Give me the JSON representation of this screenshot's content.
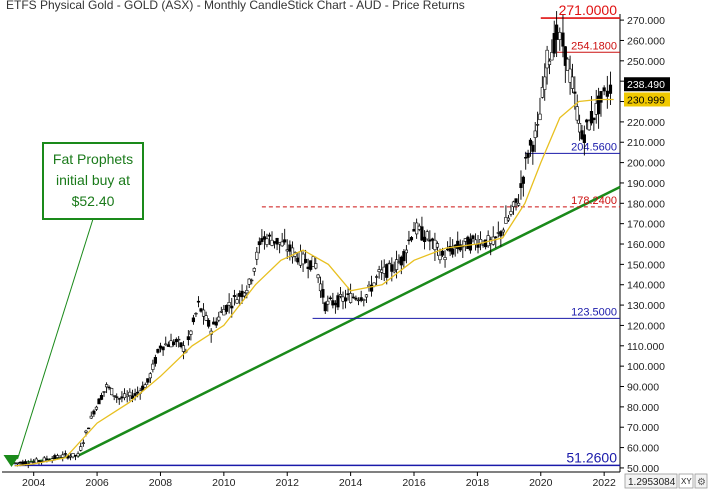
{
  "chart_data": {
    "type": "candlestick",
    "title": "ETFS Physical Gold - GOLD (ASX) - Monthly CandleStick Chart - AUD - Price Returns",
    "x_ticks": [
      "2004",
      "2006",
      "2008",
      "2010",
      "2012",
      "2014",
      "2016",
      "2018",
      "2020",
      "2022"
    ],
    "y_ticks": [
      "50.000",
      "60.000",
      "70.000",
      "80.000",
      "90.000",
      "100.000",
      "110.000",
      "120.000",
      "130.000",
      "140.000",
      "150.000",
      "160.000",
      "170.000",
      "180.000",
      "190.000",
      "200.000",
      "210.000",
      "220.000",
      "230.000",
      "240.000",
      "250.000",
      "260.000",
      "270.000"
    ],
    "ylim": [
      48,
      273
    ],
    "xlim": [
      2003.0,
      2022.5
    ],
    "price_series": [
      {
        "x": 2003.4,
        "y": 52.4
      },
      {
        "x": 2004.0,
        "y": 53
      },
      {
        "x": 2004.5,
        "y": 54.5
      },
      {
        "x": 2005.0,
        "y": 56
      },
      {
        "x": 2005.4,
        "y": 56
      },
      {
        "x": 2005.9,
        "y": 78
      },
      {
        "x": 2006.3,
        "y": 90
      },
      {
        "x": 2006.7,
        "y": 84
      },
      {
        "x": 2007.2,
        "y": 86
      },
      {
        "x": 2007.6,
        "y": 92
      },
      {
        "x": 2008.0,
        "y": 110
      },
      {
        "x": 2008.5,
        "y": 112
      },
      {
        "x": 2008.8,
        "y": 108
      },
      {
        "x": 2009.2,
        "y": 130
      },
      {
        "x": 2009.6,
        "y": 118
      },
      {
        "x": 2010.0,
        "y": 128
      },
      {
        "x": 2010.5,
        "y": 135
      },
      {
        "x": 2010.8,
        "y": 140
      },
      {
        "x": 2011.2,
        "y": 163
      },
      {
        "x": 2011.6,
        "y": 162
      },
      {
        "x": 2012.0,
        "y": 158
      },
      {
        "x": 2012.5,
        "y": 152
      },
      {
        "x": 2012.9,
        "y": 150
      },
      {
        "x": 2013.2,
        "y": 130
      },
      {
        "x": 2013.6,
        "y": 132
      },
      {
        "x": 2014.0,
        "y": 134
      },
      {
        "x": 2014.5,
        "y": 135
      },
      {
        "x": 2014.9,
        "y": 145
      },
      {
        "x": 2015.3,
        "y": 148
      },
      {
        "x": 2015.6,
        "y": 152
      },
      {
        "x": 2016.0,
        "y": 168
      },
      {
        "x": 2016.5,
        "y": 162
      },
      {
        "x": 2016.9,
        "y": 154
      },
      {
        "x": 2017.3,
        "y": 158
      },
      {
        "x": 2017.7,
        "y": 160
      },
      {
        "x": 2018.1,
        "y": 162
      },
      {
        "x": 2018.5,
        "y": 160
      },
      {
        "x": 2018.9,
        "y": 170
      },
      {
        "x": 2019.3,
        "y": 182
      },
      {
        "x": 2019.6,
        "y": 205
      },
      {
        "x": 2019.9,
        "y": 215
      },
      {
        "x": 2020.2,
        "y": 250
      },
      {
        "x": 2020.5,
        "y": 262
      },
      {
        "x": 2020.7,
        "y": 258
      },
      {
        "x": 2021.0,
        "y": 238
      },
      {
        "x": 2021.3,
        "y": 212
      },
      {
        "x": 2021.6,
        "y": 222
      },
      {
        "x": 2021.9,
        "y": 230
      },
      {
        "x": 2022.1,
        "y": 235
      },
      {
        "x": 2022.3,
        "y": 238.49
      }
    ],
    "moving_average": [
      {
        "x": 2003.4,
        "y": 51
      },
      {
        "x": 2004.0,
        "y": 52
      },
      {
        "x": 2005.0,
        "y": 55
      },
      {
        "x": 2006.0,
        "y": 72
      },
      {
        "x": 2007.0,
        "y": 82
      },
      {
        "x": 2008.0,
        "y": 95
      },
      {
        "x": 2009.0,
        "y": 110
      },
      {
        "x": 2010.0,
        "y": 120
      },
      {
        "x": 2011.0,
        "y": 140
      },
      {
        "x": 2011.8,
        "y": 152
      },
      {
        "x": 2012.5,
        "y": 157
      },
      {
        "x": 2013.3,
        "y": 150
      },
      {
        "x": 2014.0,
        "y": 137
      },
      {
        "x": 2015.0,
        "y": 140
      },
      {
        "x": 2016.0,
        "y": 152
      },
      {
        "x": 2017.0,
        "y": 158
      },
      {
        "x": 2018.0,
        "y": 160
      },
      {
        "x": 2018.8,
        "y": 163
      },
      {
        "x": 2019.5,
        "y": 180
      },
      {
        "x": 2020.0,
        "y": 200
      },
      {
        "x": 2020.6,
        "y": 222
      },
      {
        "x": 2021.2,
        "y": 230
      },
      {
        "x": 2021.8,
        "y": 231
      },
      {
        "x": 2022.3,
        "y": 230.999
      }
    ],
    "trendlines": [
      {
        "name": "primary",
        "points": [
          {
            "x": 2005.4,
            "y": 56
          },
          {
            "x": 2022.5,
            "y": 188
          }
        ]
      },
      {
        "name": "buy-pointer",
        "points": [
          {
            "x": 2003.3,
            "y": 52
          },
          {
            "x": 2005.4,
            "y": 56
          }
        ]
      }
    ],
    "levels": [
      {
        "label": "271.0000",
        "value": 271,
        "color": "#e01010",
        "size": "large"
      },
      {
        "label": "254.1800",
        "value": 254.18,
        "color": "#cc1010",
        "size": "small"
      },
      {
        "label": "204.5600",
        "value": 204.56,
        "color": "#1a1aaa",
        "size": "small"
      },
      {
        "label": "178.2400",
        "value": 178.24,
        "color": "#cc1010",
        "size": "small",
        "dashed": true
      },
      {
        "label": "123.5000",
        "value": 123.5,
        "color": "#1a1aaa",
        "size": "small"
      },
      {
        "label": "51.2600",
        "value": 51.26,
        "color": "#1a1aaa",
        "size": "large"
      }
    ],
    "last_price": {
      "label": "238.490",
      "value": 238.49
    },
    "ma_value": {
      "label": "230.999",
      "value": 230.999
    },
    "annotation": {
      "lines": [
        "Fat Prophets",
        "initial buy at",
        "$52.40"
      ],
      "x": 2003.3,
      "y": 52.4
    },
    "corner_readout": "1.2953084",
    "xy_button": "XY",
    "colors": {
      "price": "#000000",
      "ma": "#e8c020",
      "trend": "#1a8a1a",
      "axis": "#000000"
    }
  }
}
